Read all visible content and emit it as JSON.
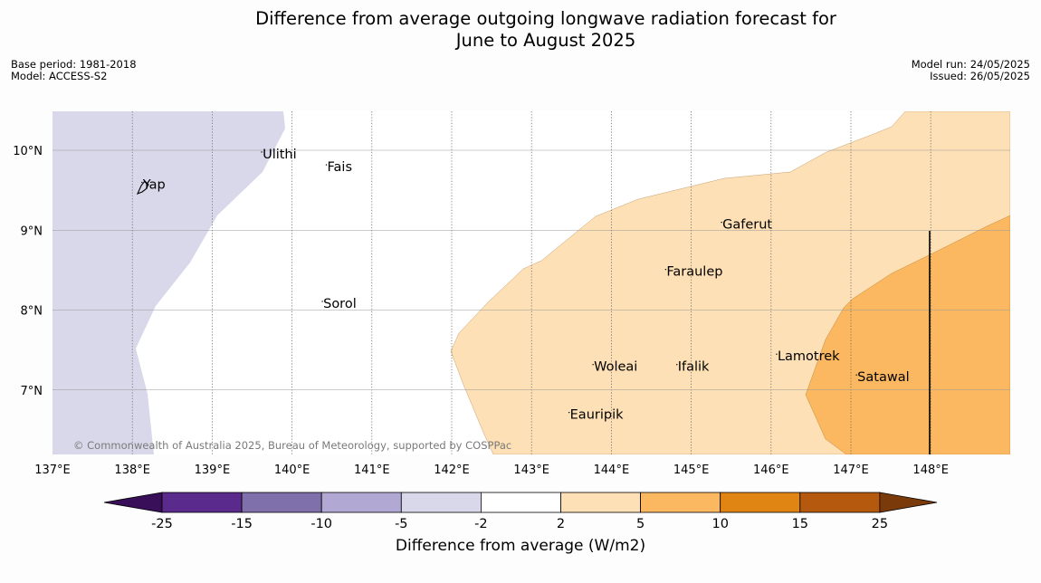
{
  "title": {
    "line1": "Difference from average outgoing longwave radiation forecast for",
    "line2": "June to August 2025"
  },
  "meta_left": {
    "base_period": "Base period: 1981-2018",
    "model": "Model: ACCESS-S2"
  },
  "meta_right": {
    "model_run": "Model run: 24/05/2025",
    "issued": "Issued: 26/05/2025"
  },
  "map": {
    "lon_range": [
      137,
      149
    ],
    "lat_range": [
      6.2,
      10.5
    ],
    "lon_ticks": [
      "137°E",
      "138°E",
      "139°E",
      "140°E",
      "141°E",
      "142°E",
      "143°E",
      "144°E",
      "145°E",
      "146°E",
      "147°E",
      "148°E"
    ],
    "lat_ticks": [
      "7°N",
      "8°N",
      "9°N",
      "10°N"
    ],
    "credit": "© Commonwealth of Australia 2025, Bureau of Meteorology, supported by COSPPac",
    "places": [
      {
        "name": "Ulithi",
        "lon": 139.62,
        "lat": 9.91
      },
      {
        "name": "Fais",
        "lon": 140.43,
        "lat": 9.75
      },
      {
        "name": "Yap",
        "lon": 138.12,
        "lat": 9.53
      },
      {
        "name": "Gaferut",
        "lon": 145.38,
        "lat": 9.03
      },
      {
        "name": "Faraulep",
        "lon": 144.68,
        "lat": 8.44
      },
      {
        "name": "Sorol",
        "lon": 140.38,
        "lat": 8.04
      },
      {
        "name": "Lamotrek",
        "lon": 146.07,
        "lat": 7.38
      },
      {
        "name": "Woleai",
        "lon": 143.77,
        "lat": 7.25
      },
      {
        "name": "Ifalik",
        "lon": 144.82,
        "lat": 7.25
      },
      {
        "name": "Satawal",
        "lon": 147.07,
        "lat": 7.12
      },
      {
        "name": "Eauripik",
        "lon": 143.47,
        "lat": 6.65
      }
    ]
  },
  "colorbar": {
    "label": "Difference from average (W/m2)",
    "ticks": [
      "-25",
      "-15",
      "-10",
      "-5",
      "-2",
      "2",
      "5",
      "10",
      "15",
      "25"
    ],
    "colors": [
      "#3a0f5a",
      "#5a2a8c",
      "#7f70ac",
      "#b1a9d3",
      "#d8d8ea",
      "#ffffff",
      "#fde0b5",
      "#fbb861",
      "#e08514",
      "#b4590d",
      "#7a3a0a"
    ]
  }
}
